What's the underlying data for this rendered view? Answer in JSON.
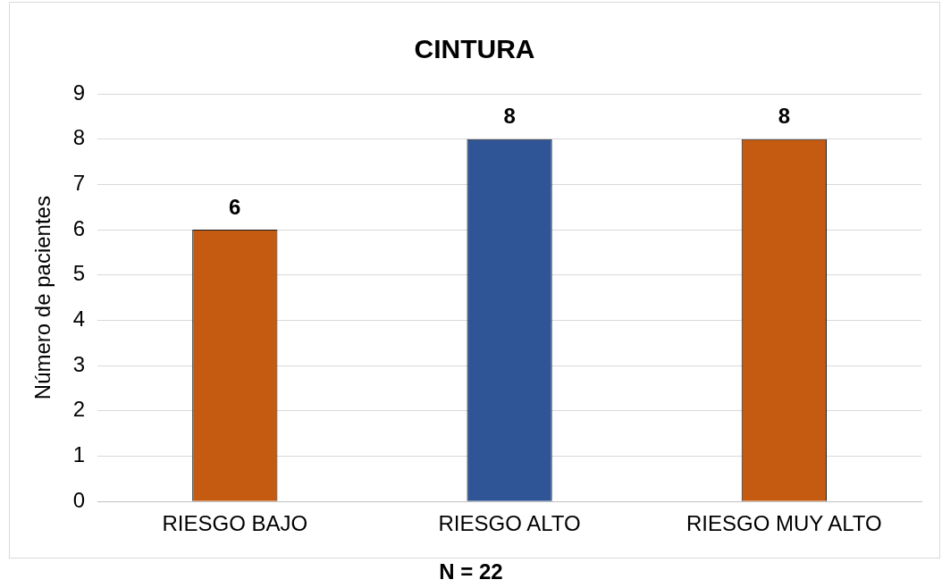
{
  "chart_data": {
    "type": "bar",
    "title": "CINTURA",
    "ylabel": "Número de pacientes",
    "categories": [
      "RIESGO BAJO",
      "RIESGO ALTO",
      "RIESGO MUY ALTO"
    ],
    "values": [
      6,
      8,
      8
    ],
    "colors": [
      "#c55a11",
      "#2f5597",
      "#c55a11"
    ],
    "ylim": [
      0,
      9
    ],
    "yticks": [
      0,
      1,
      2,
      3,
      4,
      5,
      6,
      7,
      8,
      9
    ],
    "grid": "y",
    "data_labels": true,
    "annotations": [
      "N = 22"
    ]
  }
}
